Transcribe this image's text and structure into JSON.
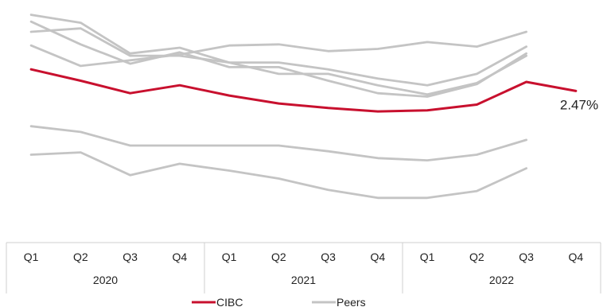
{
  "chart_data": {
    "type": "line",
    "title": "",
    "xlabel": "",
    "ylabel": "",
    "quarters": [
      "Q1",
      "Q2",
      "Q3",
      "Q4",
      "Q1",
      "Q2",
      "Q3",
      "Q4",
      "Q1",
      "Q2",
      "Q3",
      "Q4"
    ],
    "years": [
      {
        "label": "2020",
        "span": [
          0,
          3
        ]
      },
      {
        "label": "2021",
        "span": [
          4,
          7
        ]
      },
      {
        "label": "2022",
        "span": [
          8,
          11
        ]
      }
    ],
    "ylim": [
      1.2,
      3.2
    ],
    "grid": false,
    "legend": {
      "placement": "bottom",
      "entries": [
        "CIBC",
        "Peers"
      ]
    },
    "colors": {
      "highlight": "#c8102e",
      "peer": "#c4c4c4"
    },
    "end_label": "2.47%",
    "series": [
      {
        "name": "CIBC",
        "highlight": true,
        "values": [
          2.66,
          2.56,
          2.45,
          2.52,
          2.43,
          2.36,
          2.32,
          2.29,
          2.3,
          2.35,
          2.55,
          2.47
        ]
      },
      {
        "name": "Peers",
        "values": [
          3.14,
          3.07,
          2.8,
          2.85,
          2.72,
          2.72,
          2.66,
          2.58,
          2.52,
          2.62,
          2.86,
          null
        ]
      },
      {
        "name": "Peers",
        "values": [
          3.08,
          2.88,
          2.71,
          2.81,
          2.68,
          2.68,
          2.56,
          2.45,
          2.42,
          2.53,
          2.8,
          null
        ]
      },
      {
        "name": "Peers",
        "values": [
          2.87,
          2.69,
          2.74,
          2.79,
          2.87,
          2.88,
          2.82,
          2.84,
          2.9,
          2.86,
          2.99,
          null
        ]
      },
      {
        "name": "Peers",
        "values": [
          2.99,
          3.02,
          2.78,
          2.78,
          2.72,
          2.62,
          2.62,
          2.52,
          2.44,
          2.54,
          2.78,
          null
        ]
      },
      {
        "name": "Peers",
        "values": [
          2.16,
          2.11,
          1.99,
          1.99,
          1.99,
          1.99,
          1.94,
          1.88,
          1.86,
          1.91,
          2.04,
          null
        ]
      },
      {
        "name": "Peers",
        "values": [
          1.91,
          1.93,
          1.73,
          1.83,
          1.77,
          1.7,
          1.6,
          1.53,
          1.53,
          1.59,
          1.79,
          null
        ]
      }
    ]
  }
}
